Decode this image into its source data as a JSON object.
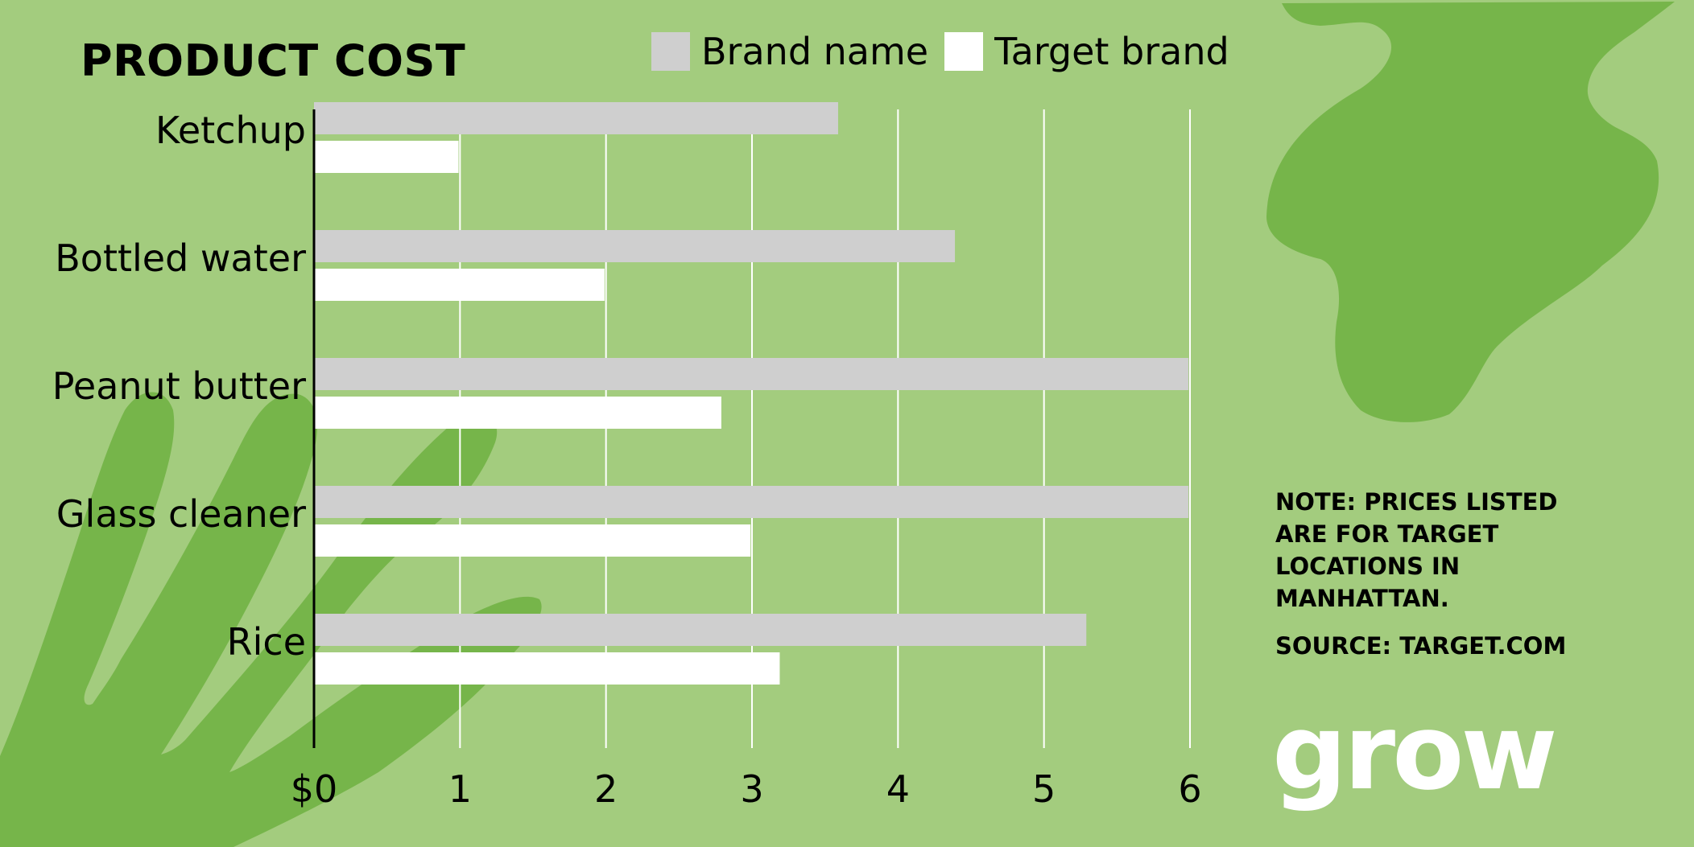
{
  "title": "PRODUCT COST",
  "legend": [
    {
      "label": "Brand name",
      "color": "#cfcfcf"
    },
    {
      "label": "Target brand",
      "color": "#ffffff"
    }
  ],
  "note": "NOTE: PRICES LISTED ARE FOR TARGET LOCATIONS IN MANHATTAN.",
  "source": "SOURCE: TARGET.COM",
  "logo": "grow",
  "colors": {
    "background": "#a3cc7e",
    "shape": "#76b54a",
    "grid": "#ffffff",
    "axis": "#000000"
  },
  "chart_data": {
    "type": "bar",
    "orientation": "horizontal",
    "title": "PRODUCT COST",
    "categories": [
      "Ketchup",
      "Bottled water",
      "Peanut butter",
      "Glass cleaner",
      "Rice"
    ],
    "series": [
      {
        "name": "Brand name",
        "values": [
          3.59,
          4.39,
          5.99,
          5.99,
          5.29
        ],
        "color": "#cfcfcf"
      },
      {
        "name": "Target brand",
        "values": [
          0.99,
          1.99,
          2.79,
          2.99,
          3.19
        ],
        "color": "#ffffff"
      }
    ],
    "xlim": [
      0,
      6
    ],
    "x_ticks": [
      "$0",
      "1",
      "2",
      "3",
      "4",
      "5",
      "6"
    ],
    "grid": true,
    "legend_position": "top"
  }
}
